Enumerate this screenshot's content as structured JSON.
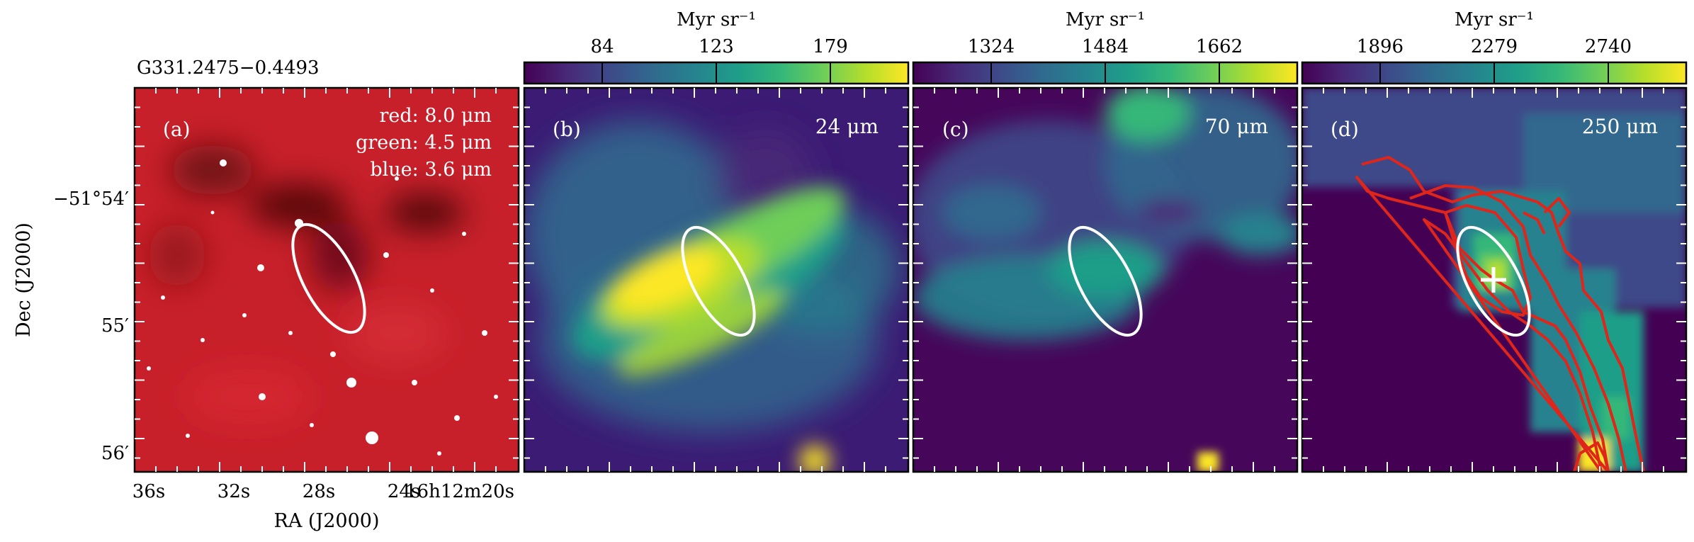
{
  "source_name": "G331.2475−0.4493",
  "axes": {
    "xlabel": "RA (J2000)",
    "ylabel": "Dec (J2000)",
    "xticks": [
      "36s",
      "32s",
      "28s",
      "24s",
      "16h12m20s"
    ],
    "yticks": [
      "−51°54′",
      "55′",
      "56′"
    ]
  },
  "panels": [
    {
      "id": "a",
      "tag": "(a)",
      "legend": [
        "red: 8.0 μm",
        "green: 4.5 μm",
        "blue: 3.6 μm"
      ],
      "image": "rgb-composite-8.0-4.5-3.6um"
    },
    {
      "id": "b",
      "tag": "(b)",
      "band": "24 μm",
      "colorbar": {
        "unit": "Myr sr⁻¹",
        "ticks": [
          "84",
          "123",
          "179"
        ],
        "colormap": "viridis"
      }
    },
    {
      "id": "c",
      "tag": "(c)",
      "band": "70 μm",
      "colorbar": {
        "unit": "Myr sr⁻¹",
        "ticks": [
          "1324",
          "1484",
          "1662"
        ],
        "colormap": "viridis"
      }
    },
    {
      "id": "d",
      "tag": "(d)",
      "band": "250 μm",
      "colorbar": {
        "unit": "Myr sr⁻¹",
        "ticks": [
          "1896",
          "2279",
          "2740"
        ],
        "colormap": "viridis"
      },
      "overlays": [
        "red-contours",
        "white-cross-marker"
      ]
    }
  ],
  "colors": {
    "viridis": [
      "#440154",
      "#482878",
      "#3e4989",
      "#31688e",
      "#26828e",
      "#1f9e89",
      "#35b779",
      "#6ece58",
      "#b5de2b",
      "#fde725"
    ],
    "ellipse": "#ffffff",
    "contour": "#e0251b",
    "rgb_background": "#c8202a"
  }
}
